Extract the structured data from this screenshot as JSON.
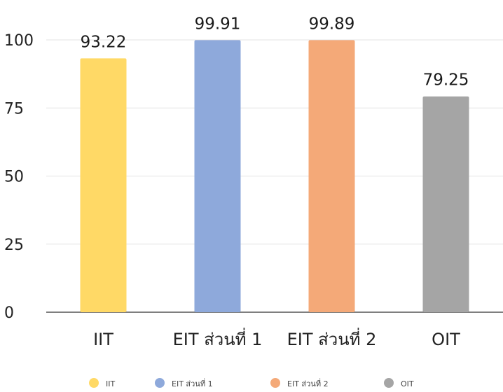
{
  "chart_data": {
    "type": "bar",
    "categories": [
      "IIT",
      "EIT ส่วนที่ 1",
      "EIT ส่วนที่ 2",
      "OIT"
    ],
    "values": [
      93.22,
      99.91,
      99.89,
      79.25
    ],
    "data_labels": [
      "93.22",
      "99.91",
      "99.89",
      "79.25"
    ],
    "colors": [
      "#FFD966",
      "#8EA9DB",
      "#F4A978",
      "#A5A5A5"
    ],
    "yticks": [
      0,
      25,
      50,
      75,
      100
    ],
    "ylim": [
      0,
      100
    ],
    "grid": true,
    "legend": {
      "position": "bottom",
      "entries": [
        "IIT",
        "EIT ส่วนที่ 1",
        "EIT ส่วนที่ 2",
        "OIT"
      ]
    },
    "title": "",
    "xlabel": "",
    "ylabel": ""
  }
}
